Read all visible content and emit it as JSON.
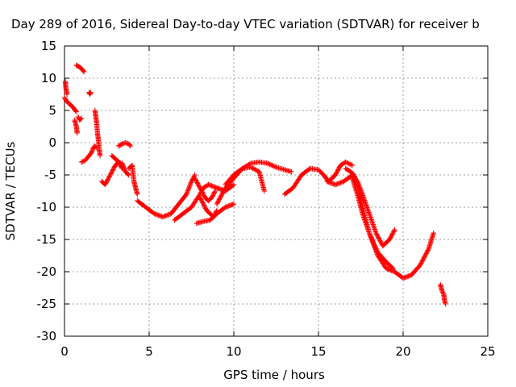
{
  "chart_data": {
    "type": "scatter",
    "title": "Day 289 of 2016, Sidereal Day-to-day VTEC variation (SDTVAR) for receiver b",
    "xlabel": "GPS time / hours",
    "ylabel": "SDTVAR / TECUs",
    "xlim": [
      0,
      25
    ],
    "ylim": [
      -30,
      15
    ],
    "xticks": [
      0,
      5,
      10,
      15,
      20,
      25
    ],
    "yticks": [
      -30,
      -25,
      -20,
      -15,
      -10,
      -5,
      0,
      5,
      10,
      15
    ],
    "grid": true,
    "marker": "plus",
    "color": "#ff0000",
    "segments": [
      {
        "x": [
          0.0,
          0.1,
          0.3,
          0.5,
          0.7
        ],
        "y": [
          7,
          6.5,
          6,
          5.5,
          4.8
        ]
      },
      {
        "x": [
          0.05,
          0.08,
          0.12,
          0.15
        ],
        "y": [
          9.5,
          8.5,
          8,
          7.5
        ]
      },
      {
        "x": [
          0.6,
          0.7,
          0.75
        ],
        "y": [
          3.5,
          2.5,
          1.5
        ]
      },
      {
        "x": [
          0.7,
          0.85,
          1.0,
          1.15
        ],
        "y": [
          12,
          11.8,
          11.5,
          11
        ]
      },
      {
        "x": [
          0.8,
          0.9,
          1.0
        ],
        "y": [
          4,
          3.5,
          3.8
        ]
      },
      {
        "x": [
          1.0,
          1.2,
          1.4,
          1.6,
          1.7,
          1.8,
          1.9
        ],
        "y": [
          -3,
          -2.8,
          -2.2,
          -1.5,
          -0.8,
          -0.5,
          -0.8
        ]
      },
      {
        "x": [
          1.45,
          1.5,
          1.55
        ],
        "y": [
          7.8,
          7.5,
          7.8
        ]
      },
      {
        "x": [
          1.8,
          1.85,
          1.9,
          1.95,
          2.0,
          2.05,
          2.1
        ],
        "y": [
          5,
          4,
          3,
          1.5,
          0.5,
          -1,
          -2
        ]
      },
      {
        "x": [
          2.2,
          2.4,
          2.6,
          2.8,
          3.0,
          3.2,
          3.4
        ],
        "y": [
          -6,
          -6.5,
          -5.5,
          -4.5,
          -3.5,
          -3,
          -4
        ]
      },
      {
        "x": [
          2.8,
          3.0,
          3.2,
          3.4,
          3.6,
          3.8
        ],
        "y": [
          -2,
          -2.5,
          -3,
          -3.2,
          -4.5,
          -5
        ]
      },
      {
        "x": [
          3.2,
          3.4,
          3.6,
          3.8,
          3.9
        ],
        "y": [
          -0.5,
          -0.2,
          0,
          -0.2,
          -0.5
        ]
      },
      {
        "x": [
          3.8,
          4.0,
          4.1,
          4.2,
          4.3
        ],
        "y": [
          -4,
          -3.5,
          -6,
          -7,
          -8
        ]
      },
      {
        "x": [
          4.3,
          4.8,
          5.3,
          5.8,
          6.3,
          6.6,
          6.9,
          7.2,
          7.5,
          7.7
        ],
        "y": [
          -9,
          -10,
          -11,
          -11.5,
          -11,
          -10,
          -9,
          -8,
          -6,
          -5
        ]
      },
      {
        "x": [
          7.7,
          7.9,
          8.1,
          8.3,
          8.5,
          8.7,
          8.9
        ],
        "y": [
          -5.5,
          -6.5,
          -7.5,
          -8.5,
          -9,
          -8.5,
          -7.5
        ]
      },
      {
        "x": [
          6.5,
          7.0,
          7.5,
          8.0,
          8.2,
          8.5,
          9.0,
          9.5,
          10.0
        ],
        "y": [
          -12,
          -11,
          -10,
          -8,
          -7,
          -6.5,
          -7,
          -7.5,
          -6.5
        ]
      },
      {
        "x": [
          7.8,
          8.2,
          8.6,
          9.0,
          9.5,
          10.0
        ],
        "y": [
          -12.5,
          -12.2,
          -12,
          -11,
          -10,
          -9.5
        ]
      },
      {
        "x": [
          8.0,
          8.2,
          8.4,
          8.6,
          8.8,
          9.0
        ],
        "y": [
          -8.5,
          -9.5,
          -10.5,
          -11,
          -11.5,
          -10.5
        ]
      },
      {
        "x": [
          9.0,
          9.5,
          10.0,
          10.5,
          11.0,
          11.5,
          12.0,
          12.5,
          13.0,
          13.4
        ],
        "y": [
          -9.5,
          -7,
          -5.5,
          -4,
          -3.2,
          -3,
          -3.2,
          -3.8,
          -4.2,
          -4.5
        ]
      },
      {
        "x": [
          9.5,
          10.0,
          10.5,
          11.0,
          11.5,
          11.8
        ],
        "y": [
          -6.5,
          -5,
          -4,
          -3.8,
          -4.5,
          -7.5
        ]
      },
      {
        "x": [
          13.0,
          13.5,
          14.0,
          14.5,
          15.0,
          15.3,
          15.6,
          16.0,
          16.3,
          16.6,
          17.0
        ],
        "y": [
          -8,
          -7,
          -5,
          -4,
          -4.2,
          -5,
          -6,
          -5,
          -3.5,
          -3,
          -3.5
        ]
      },
      {
        "x": [
          15.5,
          16.0,
          16.5,
          17.0,
          17.3,
          17.6,
          18.0,
          18.4,
          18.8,
          19.2,
          19.5
        ],
        "y": [
          -6,
          -6.5,
          -6,
          -5,
          -6,
          -8,
          -11,
          -14,
          -16,
          -15,
          -13.5
        ]
      },
      {
        "x": [
          16.6,
          16.9,
          17.1,
          17.3,
          17.6,
          18.0,
          18.5,
          19.0,
          19.5,
          20.0,
          20.5,
          21.0,
          21.5,
          21.8
        ],
        "y": [
          -4,
          -4.5,
          -5,
          -6.5,
          -10,
          -14,
          -17.5,
          -19.5,
          -20,
          -21,
          -20.5,
          -19,
          -16.5,
          -14
        ]
      },
      {
        "x": [
          17.0,
          17.3,
          17.6,
          18.0,
          18.5,
          19.0,
          19.4
        ],
        "y": [
          -5.5,
          -8,
          -11,
          -14,
          -17,
          -18.5,
          -19.5
        ]
      },
      {
        "x": [
          22.2,
          22.3,
          22.4,
          22.45,
          22.5
        ],
        "y": [
          -22,
          -23,
          -23.5,
          -24.5,
          -25
        ]
      }
    ]
  }
}
